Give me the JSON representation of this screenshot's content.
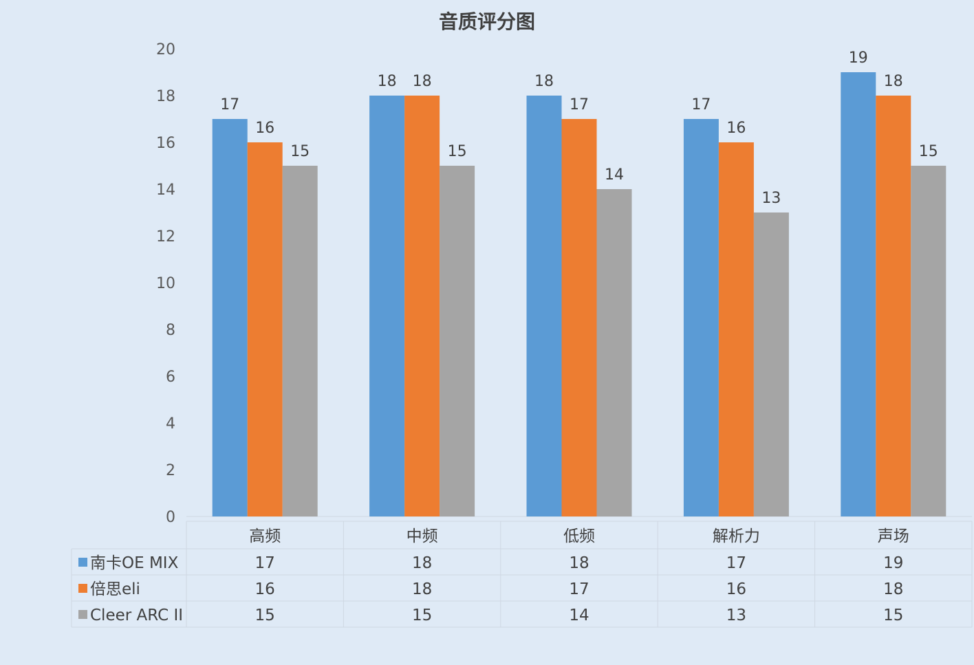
{
  "title": "音质评分图",
  "chart_data": {
    "type": "bar",
    "title": "音质评分图",
    "categories": [
      "高频",
      "中频",
      "低频",
      "解析力",
      "声场"
    ],
    "series": [
      {
        "name": "南卡OE MIX",
        "color": "#5b9bd5",
        "values": [
          17,
          18,
          18,
          17,
          19
        ]
      },
      {
        "name": "倍思eli",
        "color": "#ed7d31",
        "values": [
          16,
          18,
          17,
          16,
          18
        ]
      },
      {
        "name": "Cleer ARC II",
        "color": "#a5a5a5",
        "values": [
          15,
          15,
          14,
          13,
          15
        ]
      }
    ],
    "ylim": [
      0,
      20
    ],
    "yticks": [
      0,
      2,
      4,
      6,
      8,
      10,
      12,
      14,
      16,
      18,
      20
    ],
    "grid": false,
    "legend": "data-table-left",
    "data_labels": true,
    "data_table": true
  }
}
